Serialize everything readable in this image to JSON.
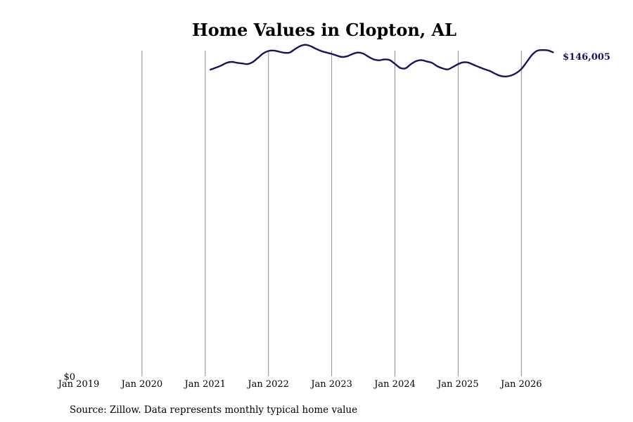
{
  "chart_data": {
    "type": "line",
    "title": "Home Values in Clopton, AL",
    "xlabel": "",
    "ylabel": "",
    "x_ticks": [
      "Jan 2019",
      "Jan 2020",
      "Jan 2021",
      "Jan 2022",
      "Jan 2023",
      "Jan 2024",
      "Jan 2025",
      "Jan 2026"
    ],
    "y_ticks": [
      "$0"
    ],
    "ylim": [
      0,
      155000
    ],
    "grid": "vertical",
    "end_label": "$146,005",
    "source": "Source: Zillow. Data represents monthly typical home value",
    "line_color": "#15155e",
    "series": [
      {
        "x": [
          "2021-02",
          "2021-03",
          "2021-04",
          "2021-05",
          "2021-06",
          "2021-07",
          "2021-08",
          "2021-09",
          "2021-10",
          "2021-11",
          "2021-12",
          "2022-01",
          "2022-02",
          "2022-03",
          "2022-04",
          "2022-05",
          "2022-06",
          "2022-07",
          "2022-08",
          "2022-09",
          "2022-10",
          "2022-11",
          "2022-12",
          "2023-01",
          "2023-02",
          "2023-03",
          "2023-04",
          "2023-05",
          "2023-06",
          "2023-07",
          "2023-08",
          "2023-09",
          "2023-10",
          "2023-11",
          "2023-12",
          "2024-01",
          "2024-02",
          "2024-03",
          "2024-04",
          "2024-05",
          "2024-06",
          "2024-07",
          "2024-08",
          "2024-09",
          "2024-10",
          "2024-11",
          "2024-12",
          "2025-01",
          "2025-02",
          "2025-03",
          "2025-04",
          "2025-05",
          "2025-06",
          "2025-07",
          "2025-08",
          "2025-09",
          "2025-10",
          "2025-11",
          "2025-12",
          "2026-01",
          "2026-02",
          "2026-03",
          "2026-04",
          "2026-05",
          "2026-06",
          "2026-07"
        ],
        "values": [
          138200,
          139100,
          140000,
          141200,
          141700,
          141300,
          141000,
          140700,
          141600,
          143500,
          145500,
          146600,
          146800,
          146300,
          145800,
          145900,
          147400,
          148800,
          149400,
          148800,
          147600,
          146600,
          145900,
          145300,
          144500,
          143900,
          144300,
          145300,
          145900,
          145400,
          144000,
          142800,
          142400,
          142800,
          142500,
          140800,
          139000,
          138800,
          140600,
          142000,
          142500,
          141900,
          141300,
          139800,
          138800,
          138300,
          139400,
          140700,
          141500,
          141300,
          140300,
          139300,
          138400,
          137600,
          136400,
          135400,
          135100,
          135500,
          136600,
          138500,
          141600,
          144800,
          146700,
          147000,
          146900,
          146005
        ]
      }
    ]
  }
}
